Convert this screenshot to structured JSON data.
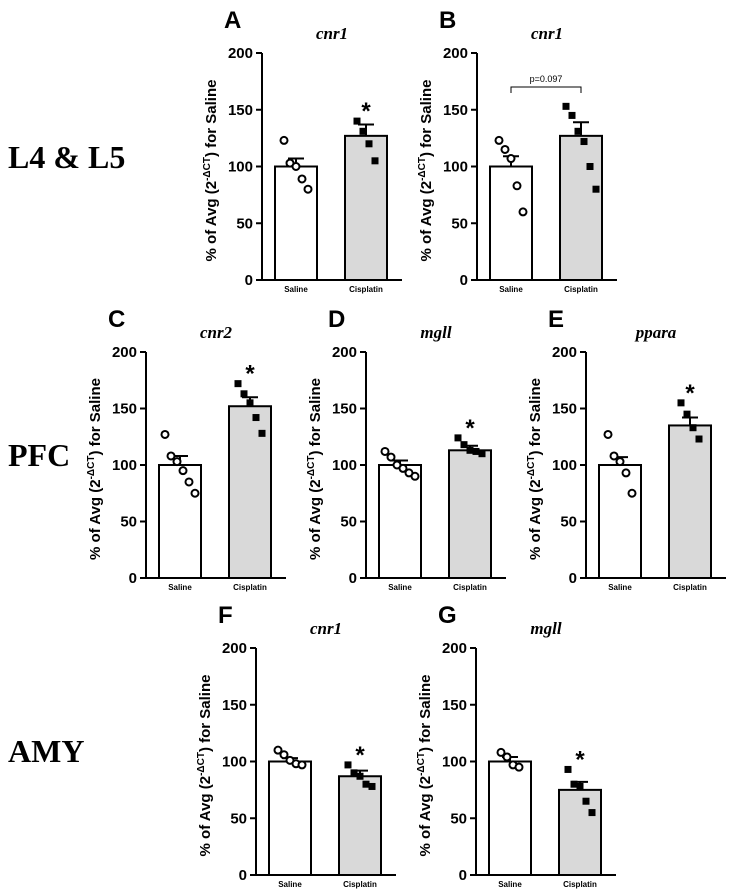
{
  "row_labels": [
    "L4 & L5",
    "PFC",
    "AMY"
  ],
  "chart_data": [
    {
      "type": "bar",
      "panel": "A",
      "title": "cnr1",
      "ylabel": [
        "% of Avg (2",
        "-ΔCT",
        ") for Saline"
      ],
      "categories": [
        "Saline",
        "Cisplatin"
      ],
      "values": [
        100,
        127
      ],
      "errors": [
        7,
        10
      ],
      "points": [
        [
          123,
          103,
          100,
          89,
          80
        ],
        [
          140,
          131,
          120,
          105
        ]
      ],
      "colors": [
        "#ffffff",
        "#d9d9d9"
      ],
      "ylim": [
        0,
        200
      ],
      "yticks": [
        0,
        50,
        100,
        150,
        200
      ],
      "annotation": {
        "category": "Cisplatin",
        "text": "*"
      }
    },
    {
      "type": "bar",
      "panel": "B",
      "title": "cnr1",
      "ylabel": [
        "% of Avg (2",
        "-ΔCT",
        ") for Saline"
      ],
      "categories": [
        "Saline",
        "Cisplatin"
      ],
      "values": [
        100,
        127
      ],
      "errors": [
        9,
        12
      ],
      "points": [
        [
          123,
          115,
          107,
          83,
          60
        ],
        [
          153,
          145,
          131,
          122,
          100,
          80
        ]
      ],
      "colors": [
        "#ffffff",
        "#d9d9d9"
      ],
      "ylim": [
        0,
        200
      ],
      "yticks": [
        0,
        50,
        100,
        150,
        200
      ],
      "bracket": {
        "text": "p=0.097",
        "y": 170
      }
    },
    {
      "type": "bar",
      "panel": "C",
      "title": "cnr2",
      "ylabel": [
        "% of Avg (2",
        "-ΔCT",
        ") for Saline"
      ],
      "categories": [
        "Saline",
        "Cisplatin"
      ],
      "values": [
        100,
        152
      ],
      "errors": [
        8,
        8
      ],
      "points": [
        [
          127,
          108,
          103,
          95,
          85,
          75
        ],
        [
          172,
          163,
          155,
          142,
          128
        ]
      ],
      "colors": [
        "#ffffff",
        "#d9d9d9"
      ],
      "ylim": [
        0,
        200
      ],
      "yticks": [
        0,
        50,
        100,
        150,
        200
      ],
      "annotation": {
        "category": "Cisplatin",
        "text": "*"
      }
    },
    {
      "type": "bar",
      "panel": "D",
      "title": "mgll",
      "ylabel": [
        "% of Avg (2",
        "-ΔCT",
        ") for Saline"
      ],
      "categories": [
        "Saline",
        "Cisplatin"
      ],
      "values": [
        100,
        113
      ],
      "errors": [
        4,
        4
      ],
      "points": [
        [
          112,
          107,
          100,
          97,
          93,
          90
        ],
        [
          124,
          118,
          113,
          112,
          110
        ]
      ],
      "colors": [
        "#ffffff",
        "#d9d9d9"
      ],
      "ylim": [
        0,
        200
      ],
      "yticks": [
        0,
        50,
        100,
        150,
        200
      ],
      "annotation": {
        "category": "Cisplatin",
        "text": "*"
      }
    },
    {
      "type": "bar",
      "panel": "E",
      "title": "ppara",
      "ylabel": [
        "% of Avg (2",
        "-ΔCT",
        ") for Saline"
      ],
      "categories": [
        "Saline",
        "Cisplatin"
      ],
      "values": [
        100,
        135
      ],
      "errors": [
        7,
        7
      ],
      "points": [
        [
          127,
          108,
          103,
          93,
          75
        ],
        [
          155,
          145,
          133,
          123
        ]
      ],
      "colors": [
        "#ffffff",
        "#d9d9d9"
      ],
      "ylim": [
        0,
        200
      ],
      "yticks": [
        0,
        50,
        100,
        150,
        200
      ],
      "annotation": {
        "category": "Cisplatin",
        "text": "*"
      }
    },
    {
      "type": "bar",
      "panel": "F",
      "title": "cnr1",
      "ylabel": [
        "% of Avg (2",
        "-ΔCT",
        ") for Saline"
      ],
      "categories": [
        "Saline",
        "Cisplatin"
      ],
      "values": [
        100,
        87
      ],
      "errors": [
        3,
        5
      ],
      "points": [
        [
          110,
          106,
          101,
          98,
          97
        ],
        [
          97,
          90,
          87,
          80,
          78
        ]
      ],
      "colors": [
        "#ffffff",
        "#d9d9d9"
      ],
      "ylim": [
        0,
        200
      ],
      "yticks": [
        0,
        50,
        100,
        150,
        200
      ],
      "annotation": {
        "category": "Cisplatin",
        "text": "*"
      }
    },
    {
      "type": "bar",
      "panel": "G",
      "title": "mgll",
      "ylabel": [
        "% of Avg (2",
        "-ΔCT",
        ") for Saline"
      ],
      "categories": [
        "Saline",
        "Cisplatin"
      ],
      "values": [
        100,
        75
      ],
      "errors": [
        4,
        7
      ],
      "points": [
        [
          108,
          104,
          97,
          95
        ],
        [
          93,
          80,
          78,
          65,
          55
        ]
      ],
      "colors": [
        "#ffffff",
        "#d9d9d9"
      ],
      "ylim": [
        0,
        200
      ],
      "yticks": [
        0,
        50,
        100,
        150,
        200
      ],
      "annotation": {
        "category": "Cisplatin",
        "text": "*"
      }
    }
  ]
}
